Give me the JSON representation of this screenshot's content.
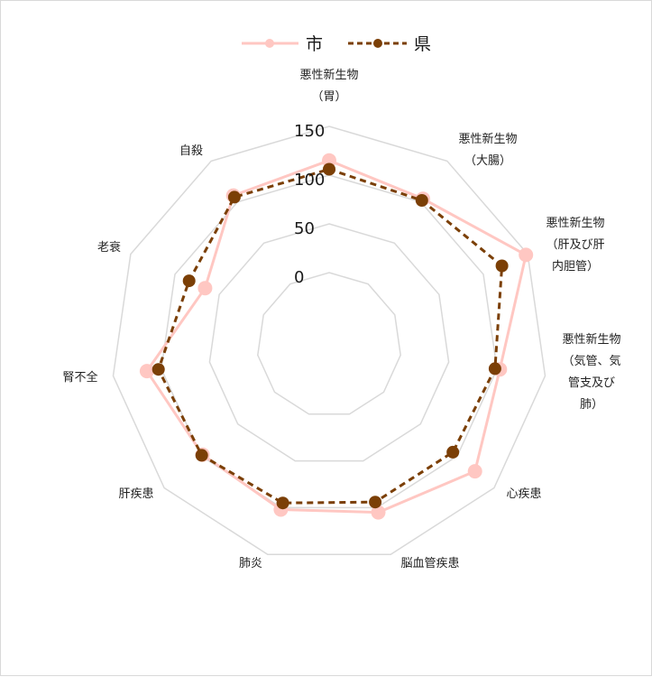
{
  "chart_data": {
    "type": "radar",
    "categories": [
      [
        "悪性新生物",
        "（胃）"
      ],
      [
        "悪性新生物",
        "（大腸）"
      ],
      [
        "悪性新生物",
        "（肝及び肝",
        "内胆管）"
      ],
      [
        "悪性新生物",
        "（気管、気",
        "管支及び",
        "肺）"
      ],
      [
        "心疾患"
      ],
      [
        "脳血管疾患"
      ],
      [
        "肺炎"
      ],
      [
        "肝疾患"
      ],
      [
        "腎不全"
      ],
      [
        "老衰"
      ],
      [
        "自殺"
      ]
    ],
    "series": [
      {
        "name": "市",
        "values": [
          115,
          104,
          148,
          103,
          124,
          105,
          102,
          98,
          115,
          66,
          108
        ],
        "color": "#ffc7c2",
        "style": "solid"
      },
      {
        "name": "県",
        "values": [
          106,
          102,
          121,
          98,
          94,
          94,
          95,
          99,
          103,
          84,
          106
        ],
        "color": "#7b3f06",
        "style": "dashed"
      }
    ],
    "ticks": [
      "0",
      "50",
      "100",
      "150"
    ],
    "rmin": 0,
    "rmax": 150,
    "legend_position": "top"
  }
}
